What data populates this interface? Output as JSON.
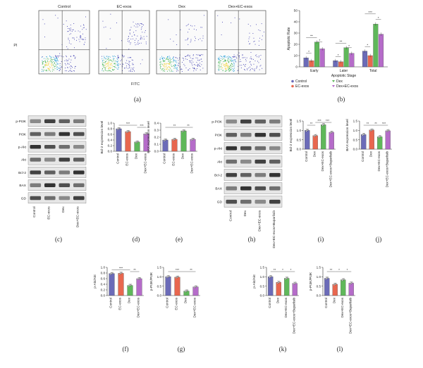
{
  "panel_labels": [
    "(a)",
    "(b)",
    "(c)",
    "(d)",
    "(e)",
    "(h)",
    "(i)",
    "(j)",
    "(f)",
    "(g)",
    "(k)",
    "(l)"
  ],
  "flow": {
    "titles": [
      "Control",
      "EC-exos",
      "Dex",
      "Dex+EC-exos"
    ],
    "ylabel": "PI",
    "xlabel": "FITC"
  },
  "colors": {
    "c0": "#6b6bb8",
    "c1": "#e8674f",
    "c2": "#5fb85a",
    "c3": "#b56cc9"
  },
  "blots": {
    "c": {
      "rows": [
        "p-PI3K",
        "PI3K",
        "p-Akt",
        "Akt",
        "Bcl-2",
        "BAX",
        "GD"
      ],
      "cols": [
        "Control",
        "EC-exos",
        "Dex",
        "Dex+EC-exos"
      ]
    },
    "h": {
      "rows": [
        "p-PI3K",
        "PI3K",
        "p-Akt",
        "Akt",
        "Bcl-2",
        "BAX",
        "GD"
      ],
      "cols": [
        "Control",
        "Dex",
        "Dex+EC-exos",
        "Dex+EC-exos+Buparlisib"
      ]
    }
  },
  "chart_data": [
    {
      "id": "b",
      "type": "bar",
      "categories": [
        "Early",
        "Later",
        "Total"
      ],
      "series": [
        {
          "name": "Control",
          "values": [
            8,
            5.5,
            14
          ]
        },
        {
          "name": "EC-exos",
          "values": [
            5.5,
            4.5,
            10
          ]
        },
        {
          "name": "Dex",
          "values": [
            22,
            17,
            38
          ]
        },
        {
          "name": "Dex+EC-exos",
          "values": [
            16,
            12,
            29
          ]
        }
      ],
      "ylabel": "Apoptotic Rate",
      "xlabel": "Apoptotic Stage",
      "ylim": [
        0,
        50
      ],
      "yticks": [
        0,
        10,
        20,
        30,
        40,
        50
      ],
      "legend": "bottom",
      "sig": [
        {
          "cat": 0,
          "from": 0,
          "to": 1,
          "label": "*",
          "y": 12
        },
        {
          "cat": 0,
          "from": 0,
          "to": 2,
          "label": "**",
          "y": 26
        },
        {
          "cat": 0,
          "from": 2,
          "to": 3,
          "label": "*",
          "y": 22
        },
        {
          "cat": 1,
          "from": 0,
          "to": 1,
          "label": "*",
          "y": 9
        },
        {
          "cat": 1,
          "from": 0,
          "to": 2,
          "label": "**",
          "y": 21
        },
        {
          "cat": 1,
          "from": 2,
          "to": 3,
          "label": "*",
          "y": 17
        },
        {
          "cat": 2,
          "from": 0,
          "to": 1,
          "label": "*",
          "y": 18
        },
        {
          "cat": 2,
          "from": 0,
          "to": 2,
          "label": "***",
          "y": 47
        },
        {
          "cat": 2,
          "from": 2,
          "to": 3,
          "label": "*",
          "y": 42
        }
      ]
    },
    {
      "id": "d",
      "type": "bar",
      "categories": [
        "Control",
        "EC-exos",
        "Dex",
        "Dex+EC-exos"
      ],
      "values": [
        0.8,
        0.7,
        0.33,
        0.62
      ],
      "ylabel": "Bcl-2 expression level",
      "ylim": [
        0,
        1.0
      ],
      "yticks": [
        0.0,
        0.2,
        0.4,
        0.6,
        0.8,
        1.0
      ],
      "sig": [
        {
          "from": 0,
          "to": 2,
          "label": "***"
        },
        {
          "from": 2,
          "to": 3,
          "label": "***"
        }
      ]
    },
    {
      "id": "e",
      "type": "bar",
      "categories": [
        "Control",
        "EC-exos",
        "Dex",
        "Dex+EC-exos"
      ],
      "values": [
        0.16,
        0.17,
        0.29,
        0.17
      ],
      "ylabel": "BAX expression level",
      "ylim": [
        0,
        0.4
      ],
      "yticks": [
        0.0,
        0.1,
        0.2,
        0.3,
        0.4
      ],
      "sig": [
        {
          "from": 0,
          "to": 2,
          "label": "**"
        },
        {
          "from": 2,
          "to": 3,
          "label": "**"
        }
      ]
    },
    {
      "id": "i",
      "type": "bar",
      "categories": [
        "Control",
        "Dex",
        "Dex+EC-exos",
        "Dex+EC-exos+Buparlisib"
      ],
      "values": [
        1.0,
        0.72,
        1.3,
        0.9
      ],
      "ylabel": "Bcl-2 expression level",
      "ylim": [
        0,
        1.5
      ],
      "yticks": [
        0.0,
        0.5,
        1.0,
        1.5
      ],
      "sig": [
        {
          "from": 0,
          "to": 1,
          "label": "**"
        },
        {
          "from": 1,
          "to": 2,
          "label": "***"
        },
        {
          "from": 2,
          "to": 3,
          "label": "***"
        }
      ]
    },
    {
      "id": "j",
      "type": "bar",
      "categories": [
        "Control",
        "Dex",
        "Dex+EC-exos",
        "Dex+EC-exos+Buparlisib"
      ],
      "values": [
        0.78,
        1.02,
        0.66,
        0.98
      ],
      "ylabel": "BAX expression level",
      "ylim": [
        0,
        1.5
      ],
      "yticks": [
        0.0,
        0.5,
        1.0,
        1.5
      ],
      "sig": [
        {
          "from": 0,
          "to": 1,
          "label": "**"
        },
        {
          "from": 1,
          "to": 2,
          "label": "**"
        },
        {
          "from": 2,
          "to": 3,
          "label": "***"
        }
      ]
    },
    {
      "id": "f",
      "type": "bar",
      "categories": [
        "Control",
        "EC-exos",
        "Dex",
        "Dex+EC-exos"
      ],
      "values": [
        0.78,
        0.79,
        0.36,
        0.6
      ],
      "ylabel": "p-Akt/Akt",
      "ylim": [
        0,
        1.0
      ],
      "yticks": [
        0.0,
        0.2,
        0.4,
        0.6,
        0.8,
        1.0
      ],
      "sig": [
        {
          "from": 0,
          "to": 2,
          "label": "***"
        },
        {
          "from": 2,
          "to": 3,
          "label": "**"
        }
      ]
    },
    {
      "id": "g",
      "type": "bar",
      "categories": [
        "Control",
        "EC-exos",
        "Dex",
        "Dex+EC-exos"
      ],
      "values": [
        1.0,
        0.98,
        0.24,
        0.46
      ],
      "ylabel": "p-PI3K/PI3K",
      "ylim": [
        0,
        1.5
      ],
      "yticks": [
        0.0,
        0.5,
        1.0,
        1.5
      ],
      "sig": [
        {
          "from": 0,
          "to": 2,
          "label": "***"
        },
        {
          "from": 2,
          "to": 3,
          "label": "**"
        }
      ]
    },
    {
      "id": "k",
      "type": "bar",
      "categories": [
        "Control",
        "Dex",
        "Dex+EC-exos",
        "Dex+EC-exos+Buparlisib"
      ],
      "values": [
        1.0,
        0.7,
        0.92,
        0.65
      ],
      "ylabel": "p-Akt/Akt",
      "ylim": [
        0,
        1.5
      ],
      "yticks": [
        0.0,
        0.5,
        1.0,
        1.5
      ],
      "sig": [
        {
          "from": 0,
          "to": 1,
          "label": "**"
        },
        {
          "from": 1,
          "to": 2,
          "label": "*"
        },
        {
          "from": 2,
          "to": 3,
          "label": "*"
        }
      ]
    },
    {
      "id": "l",
      "type": "bar",
      "categories": [
        "Control",
        "Dex",
        "Dex+EC-exos",
        "Dex+EC-exos+Buparlisib"
      ],
      "values": [
        0.92,
        0.6,
        0.84,
        0.66
      ],
      "ylabel": "p-PI3K/PI3K",
      "ylim": [
        0,
        1.5
      ],
      "yticks": [
        0.0,
        0.5,
        1.0,
        1.5
      ],
      "sig": [
        {
          "from": 0,
          "to": 1,
          "label": "**"
        },
        {
          "from": 1,
          "to": 2,
          "label": "*"
        },
        {
          "from": 2,
          "to": 3,
          "label": "*"
        }
      ]
    }
  ]
}
